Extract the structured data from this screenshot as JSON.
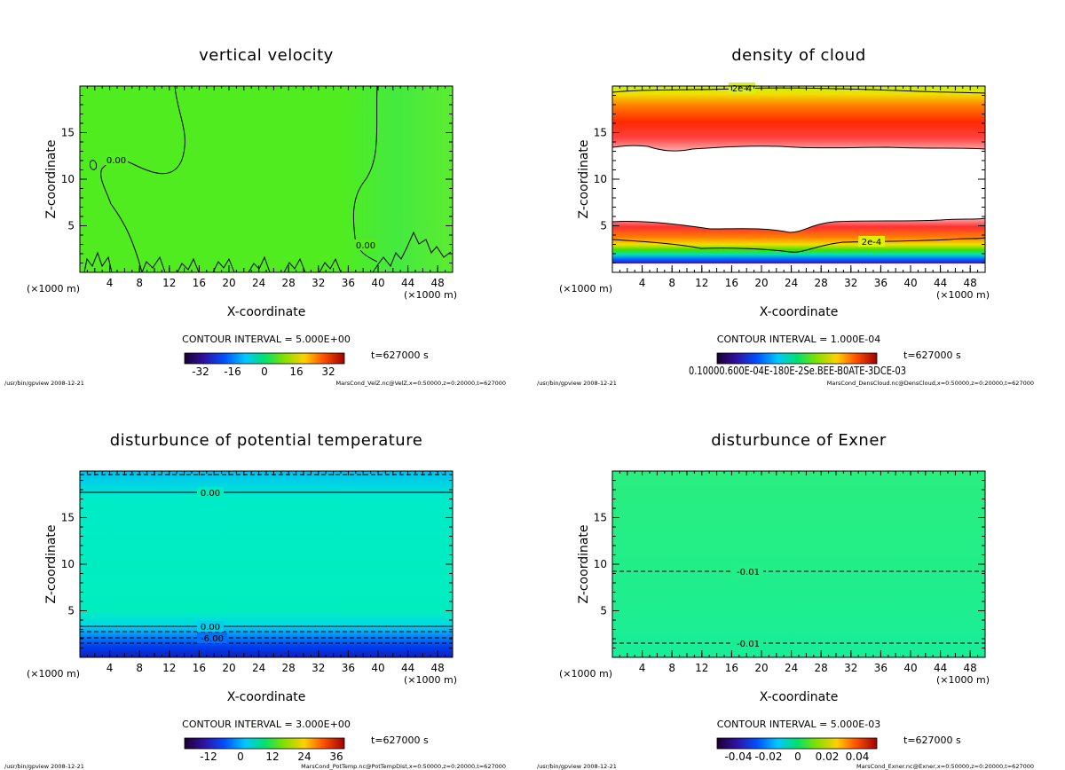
{
  "window": {
    "title": ""
  },
  "chart_data": [
    {
      "type": "heatmap",
      "title": "vertical velocity",
      "xlabel": "X-coordinate",
      "ylabel": "Z-coordinate",
      "x_unit": "(×1000 m)",
      "x_ticks": [
        "4",
        "8",
        "12",
        "16",
        "20",
        "24",
        "28",
        "32",
        "36",
        "40",
        "44",
        "48"
      ],
      "y_ticks": [
        "5",
        "10",
        "15"
      ],
      "xlim": [
        0,
        50
      ],
      "ylim": [
        0,
        20
      ],
      "contour_interval": "CONTOUR INTERVAL = 5.000E+00",
      "time_label": "t=627000 s",
      "colorbar_ticks": [
        "-32",
        "-16",
        "0",
        "16",
        "32"
      ],
      "contour_labels": [
        "0.00",
        "0.00"
      ],
      "footer_left": "/usr/bin/gpview   2008-12-21",
      "footer_right": "MarsCond_VelZ.nc@VelZ,x=0:50000,z=0:20000,t=627000",
      "fill_color": "#55ee22"
    },
    {
      "type": "heatmap",
      "title": "density of cloud",
      "xlabel": "X-coordinate",
      "ylabel": "Z-coordinate",
      "x_unit": "(×1000 m)",
      "x_ticks": [
        "4",
        "8",
        "12",
        "16",
        "20",
        "24",
        "28",
        "32",
        "36",
        "40",
        "44",
        "48"
      ],
      "y_ticks": [
        "5",
        "10",
        "15"
      ],
      "xlim": [
        0,
        50
      ],
      "ylim": [
        0,
        20
      ],
      "contour_interval": "CONTOUR INTERVAL = 1.000E-04",
      "time_label": "t=627000 s",
      "colorbar_ticks_text": "0.10000.600E-04E-180E-2Se.BEE-B0ATE-3DCE-03",
      "contour_labels": [
        "2e-4",
        "2e-4"
      ],
      "footer_left": "/usr/bin/gpview   2008-12-21",
      "footer_right": "MarsCond_DensCloud.nc@DensCloud,x=0:50000,z=0:20000,t=627000"
    },
    {
      "type": "heatmap",
      "title": "disturbunce of potential temperature",
      "xlabel": "X-coordinate",
      "ylabel": "Z-coordinate",
      "x_unit": "(×1000 m)",
      "x_ticks": [
        "4",
        "8",
        "12",
        "16",
        "20",
        "24",
        "28",
        "32",
        "36",
        "40",
        "44",
        "48"
      ],
      "y_ticks": [
        "5",
        "10",
        "15"
      ],
      "xlim": [
        0,
        50
      ],
      "ylim": [
        0,
        20
      ],
      "contour_interval": "CONTOUR INTERVAL = 3.000E+00",
      "time_label": "t=627000 s",
      "colorbar_ticks": [
        "-12",
        "0",
        "12",
        "24",
        "36"
      ],
      "contour_labels": [
        "0.00",
        "0.00",
        "-6.00"
      ],
      "footer_left": "/usr/bin/gpview   2008-12-21",
      "footer_right": "MarsCond_PotTemp.nc@PotTempDist,x=0:50000,z=0:20000,t=627000",
      "fill_color": "#00eebb"
    },
    {
      "type": "heatmap",
      "title": "disturbunce of Exner",
      "xlabel": "X-coordinate",
      "ylabel": "Z-coordinate",
      "x_unit": "(×1000 m)",
      "x_ticks": [
        "4",
        "8",
        "12",
        "16",
        "20",
        "24",
        "28",
        "32",
        "36",
        "40",
        "44",
        "48"
      ],
      "y_ticks": [
        "5",
        "10",
        "15"
      ],
      "xlim": [
        0,
        50
      ],
      "ylim": [
        0,
        20
      ],
      "contour_interval": "CONTOUR INTERVAL = 5.000E-03",
      "time_label": "t=627000 s",
      "colorbar_ticks": [
        "-0.04",
        "-0.02",
        "0",
        "0.02",
        "0.04"
      ],
      "contour_labels": [
        "-0.01",
        "-0.01"
      ],
      "footer_left": "/usr/bin/gpview   2008-12-21",
      "footer_right": "MarsCond_Exner.nc@Exner,x=0:50000,z=0:20000,t=627000",
      "fill_color": "#22ee88"
    }
  ]
}
